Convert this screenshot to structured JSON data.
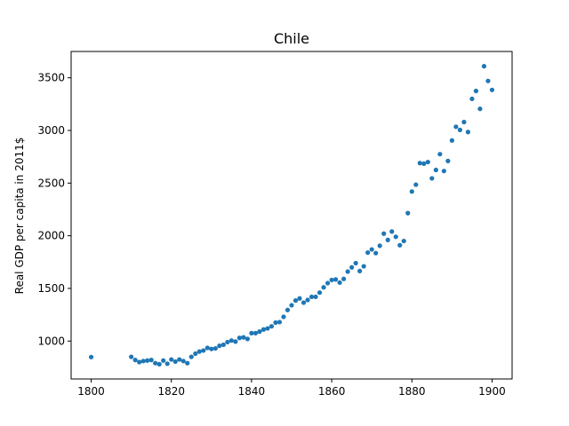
{
  "chart_data": {
    "type": "scatter",
    "title": "Chile",
    "xlabel": "",
    "ylabel": "Real GDP per capita in 2011$",
    "xlim": [
      1795,
      1905
    ],
    "ylim": [
      640,
      3750
    ],
    "xticks": [
      1800,
      1820,
      1840,
      1860,
      1880,
      1900
    ],
    "yticks": [
      1000,
      1500,
      2000,
      2500,
      3000,
      3500
    ],
    "grid": false,
    "marker_color": "#1f77b4",
    "series": [
      {
        "x": [
          1800,
          1810,
          1811,
          1812,
          1813,
          1814,
          1815,
          1816,
          1817,
          1818,
          1819,
          1820,
          1821,
          1822,
          1823,
          1824,
          1825,
          1826,
          1827,
          1828,
          1829,
          1830,
          1831,
          1832,
          1833,
          1834,
          1835,
          1836,
          1837,
          1838,
          1839,
          1840,
          1841,
          1842,
          1843,
          1844,
          1845,
          1846,
          1847,
          1848,
          1849,
          1850,
          1851,
          1852,
          1853,
          1854,
          1855,
          1856,
          1857,
          1858,
          1859,
          1860,
          1861,
          1862,
          1863,
          1864,
          1865,
          1866,
          1867,
          1868,
          1869,
          1870,
          1871,
          1872,
          1873,
          1874,
          1875,
          1876,
          1877,
          1878,
          1879,
          1880,
          1881,
          1882,
          1883,
          1884,
          1885,
          1886,
          1887,
          1888,
          1889,
          1890,
          1891,
          1892,
          1893,
          1894,
          1895,
          1896,
          1897,
          1898,
          1899,
          1900
        ],
        "y": [
          848,
          850,
          820,
          800,
          810,
          815,
          820,
          790,
          780,
          815,
          785,
          825,
          805,
          825,
          810,
          790,
          850,
          880,
          900,
          910,
          935,
          925,
          930,
          955,
          965,
          990,
          1005,
          995,
          1030,
          1035,
          1020,
          1075,
          1075,
          1090,
          1110,
          1120,
          1140,
          1175,
          1180,
          1230,
          1295,
          1340,
          1385,
          1405,
          1365,
          1390,
          1420,
          1420,
          1460,
          1510,
          1550,
          1580,
          1585,
          1555,
          1590,
          1660,
          1700,
          1740,
          1665,
          1710,
          1840,
          1870,
          1835,
          1905,
          2020,
          1960,
          2040,
          1990,
          1910,
          1950,
          2215,
          2420,
          2485,
          2690,
          2685,
          2700,
          2545,
          2625,
          2775,
          2615,
          2710,
          2905,
          3035,
          3005,
          3080,
          2985,
          3300,
          3375,
          3205,
          3610,
          3470,
          3385
        ]
      }
    ]
  }
}
